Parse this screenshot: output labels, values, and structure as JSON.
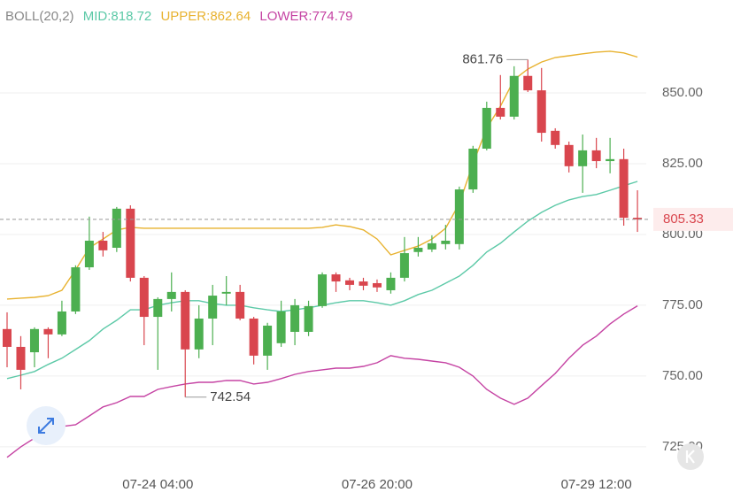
{
  "chart_data": {
    "type": "candlestick",
    "indicator": "BOLL(20,2)",
    "categories": [
      null,
      null,
      null,
      null,
      null,
      null,
      null,
      null,
      null,
      null,
      null,
      "07-24 04:00",
      null,
      null,
      null,
      null,
      null,
      null,
      null,
      null,
      null,
      null,
      null,
      null,
      null,
      null,
      null,
      "07-26 20:00",
      null,
      null,
      null,
      null,
      null,
      null,
      null,
      null,
      null,
      null,
      null,
      null,
      null,
      null,
      null,
      "07-29 12:00",
      null,
      null,
      null
    ],
    "open": [
      766.6,
      760.3,
      758.4,
      766.6,
      764.7,
      772.8,
      788.4,
      797.8,
      795.3,
      809.1,
      784.7,
      770.9,
      777.2,
      779.7,
      759.4,
      770.3,
      779.1,
      779.7,
      770.3,
      757.2,
      761.6,
      765.6,
      765.6,
      774.7,
      785.9,
      783.8,
      783.4,
      782.8,
      780.3,
      784.7,
      793.8,
      794.7,
      796.6,
      796.6,
      815.9,
      830.3,
      844.7,
      841.6,
      856.0,
      850.9,
      836.6,
      831.6,
      824.1,
      829.7,
      825.9,
      826.6,
      805.9
    ],
    "high": [
      772.5,
      764.1,
      767.2,
      767.2,
      776.6,
      789.1,
      806.3,
      800.9,
      809.7,
      810.3,
      785.3,
      777.8,
      786.6,
      780.3,
      775.0,
      782.2,
      785.3,
      782.2,
      770.9,
      768.8,
      776.6,
      777.2,
      776.6,
      786.6,
      786.6,
      784.7,
      784.7,
      784.1,
      786.6,
      799.1,
      799.1,
      799.7,
      803.4,
      816.9,
      831.3,
      846.9,
      856.3,
      859.4,
      861.76,
      858.8,
      837.5,
      832.8,
      835.3,
      834.1,
      834.1,
      830.3,
      815.6
    ],
    "low": [
      753.1,
      745.3,
      753.1,
      756.3,
      764.1,
      771.9,
      787.5,
      792.2,
      793.8,
      783.4,
      760.9,
      752.2,
      772.8,
      742.54,
      756.3,
      760.9,
      775.0,
      769.7,
      754.1,
      752.2,
      760.3,
      760.9,
      764.1,
      774.1,
      779.7,
      780.3,
      780.3,
      779.7,
      779.1,
      783.4,
      792.2,
      793.8,
      794.7,
      794.7,
      814.7,
      829.7,
      840.6,
      840.6,
      850.3,
      832.8,
      830.3,
      821.9,
      814.7,
      823.4,
      821.6,
      803.1,
      800.9
    ],
    "close": [
      760.3,
      752.2,
      766.6,
      764.7,
      772.8,
      788.4,
      797.8,
      794.4,
      809.1,
      784.7,
      770.9,
      777.2,
      779.7,
      759.4,
      770.3,
      778.4,
      779.7,
      770.3,
      757.2,
      767.8,
      772.8,
      775.0,
      774.7,
      785.9,
      783.4,
      782.2,
      781.9,
      781.3,
      784.7,
      793.4,
      795.3,
      796.9,
      797.8,
      815.9,
      830.3,
      844.7,
      841.6,
      856.0,
      850.9,
      835.9,
      831.6,
      824.1,
      829.7,
      825.9,
      826.6,
      805.9,
      805.33
    ],
    "up_color": "#4caf50",
    "down_color": "#d9464e",
    "series": [
      {
        "name": "MID:",
        "color": "#5cc9a7",
        "values": [
          749.1,
          750.3,
          751.6,
          754.1,
          756.3,
          759.4,
          762.5,
          766.6,
          769.7,
          773.4,
          773.4,
          775.0,
          775.9,
          776.6,
          776.6,
          775.6,
          775.0,
          775.0,
          774.1,
          773.4,
          772.8,
          773.4,
          774.1,
          775.0,
          775.9,
          776.6,
          776.6,
          775.9,
          775.0,
          776.6,
          778.8,
          780.3,
          782.8,
          785.3,
          789.1,
          793.8,
          796.9,
          800.9,
          804.7,
          807.8,
          810.3,
          812.2,
          813.4,
          814.1,
          815.6,
          817.2,
          818.72
        ]
      },
      {
        "name": "UPPER:",
        "color": "#e8b22f",
        "values": [
          777.2,
          777.5,
          777.8,
          778.4,
          780.3,
          787.5,
          795.3,
          798.4,
          801.6,
          802.5,
          802.2,
          802.2,
          802.2,
          802.2,
          802.2,
          802.2,
          802.2,
          802.2,
          802.2,
          802.2,
          802.2,
          802.2,
          802.2,
          802.5,
          803.4,
          802.8,
          801.6,
          798.4,
          792.8,
          794.4,
          795.9,
          798.4,
          802.2,
          810.9,
          825.0,
          837.5,
          845.3,
          854.7,
          858.4,
          860.9,
          862.5,
          863.1,
          863.8,
          864.4,
          864.7,
          864.1,
          862.64
        ]
      },
      {
        "name": "LOWER:",
        "color": "#c543a3",
        "values": [
          721.3,
          725.0,
          728.1,
          729.7,
          732.2,
          732.8,
          735.9,
          739.1,
          740.6,
          742.8,
          742.8,
          745.3,
          746.3,
          747.2,
          747.8,
          747.8,
          748.4,
          748.4,
          747.2,
          747.8,
          749.1,
          750.6,
          751.6,
          752.2,
          752.8,
          752.8,
          753.4,
          754.7,
          757.2,
          756.3,
          755.9,
          755.3,
          754.7,
          753.1,
          750.0,
          745.3,
          742.2,
          740.0,
          742.2,
          746.6,
          750.9,
          756.3,
          760.9,
          764.1,
          768.4,
          771.9,
          774.79
        ]
      }
    ],
    "ylim": [
      715.6,
      882.8
    ],
    "yticks": [
      {
        "value": 725,
        "label": "725.00"
      },
      {
        "value": 750,
        "label": "750.00"
      },
      {
        "value": 775,
        "label": "775.00"
      },
      {
        "value": 800,
        "label": "800.00"
      },
      {
        "value": 825,
        "label": "825.00"
      },
      {
        "value": 850,
        "label": "850.00"
      }
    ],
    "grid": true
  }
}
